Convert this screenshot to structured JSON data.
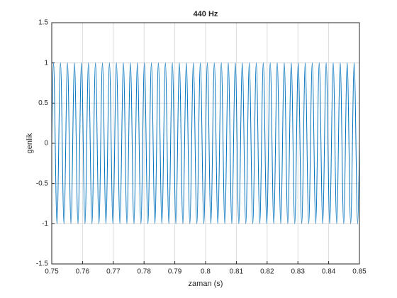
{
  "chart_data": {
    "type": "line",
    "title": "440 Hz",
    "xlabel": "zaman (s)",
    "ylabel": "genlik",
    "color": "#0072bd",
    "grid": true,
    "xlim": [
      0.75,
      0.85
    ],
    "ylim": [
      -1.5,
      1.5
    ],
    "xticks": [
      0.75,
      0.76,
      0.77,
      0.78,
      0.79,
      0.8,
      0.81,
      0.82,
      0.83,
      0.84,
      0.85
    ],
    "yticks": [
      -1.5,
      -1,
      -0.5,
      0,
      0.5,
      1,
      1.5
    ],
    "x": [
      0.75,
      0.750568,
      0.751136,
      0.751705,
      0.752273,
      0.752841,
      0.753409,
      0.753977,
      0.754545,
      0.755114,
      0.755682,
      0.75625,
      0.756818,
      0.757386,
      0.757955,
      0.758523,
      0.759091,
      0.759659,
      0.760227,
      0.760795,
      0.761364,
      0.761932,
      0.7625,
      0.763068,
      0.763636,
      0.764205,
      0.764773,
      0.765341,
      0.765909,
      0.766477,
      0.767045,
      0.767614,
      0.768182,
      0.76875,
      0.769318,
      0.769886,
      0.770455,
      0.771023,
      0.771591,
      0.772159,
      0.772727,
      0.773295,
      0.773864,
      0.774432,
      0.775,
      0.775568,
      0.776136,
      0.776705,
      0.777273,
      0.777841,
      0.778409,
      0.778977,
      0.779545,
      0.780114,
      0.780682,
      0.78125,
      0.781818,
      0.782386,
      0.782955,
      0.783523,
      0.784091,
      0.784659,
      0.785227,
      0.785795,
      0.786364,
      0.786932,
      0.7875,
      0.788068,
      0.788636,
      0.789205,
      0.789773,
      0.790341,
      0.790909,
      0.791477,
      0.792045,
      0.792614,
      0.793182,
      0.79375,
      0.794318,
      0.794886,
      0.795455,
      0.796023,
      0.796591,
      0.797159,
      0.797727,
      0.798295,
      0.798864,
      0.799432,
      0.8,
      0.800568,
      0.801136,
      0.801705,
      0.802273,
      0.802841,
      0.803409,
      0.803977,
      0.804545,
      0.805114,
      0.805682,
      0.80625,
      0.806818,
      0.807386,
      0.807955,
      0.808523,
      0.809091,
      0.809659,
      0.810227,
      0.810795,
      0.811364,
      0.811932,
      0.8125,
      0.813068,
      0.813636,
      0.814205,
      0.814773,
      0.815341,
      0.815909,
      0.816477,
      0.817045,
      0.817614,
      0.818182,
      0.81875,
      0.819318,
      0.819886,
      0.820455,
      0.821023,
      0.821591,
      0.822159,
      0.822727,
      0.823295,
      0.823864,
      0.824432,
      0.825,
      0.825568,
      0.826136,
      0.826705,
      0.827273,
      0.827841,
      0.828409,
      0.828977,
      0.829545,
      0.830114,
      0.830682,
      0.83125,
      0.831818,
      0.832386,
      0.832955,
      0.833523,
      0.834091,
      0.834659,
      0.835227,
      0.835795,
      0.836364,
      0.836932,
      0.8375,
      0.838068,
      0.838636,
      0.839205,
      0.839773,
      0.840341,
      0.840909,
      0.841477,
      0.842045,
      0.842614,
      0.843182,
      0.84375,
      0.844318,
      0.844886,
      0.845455,
      0.846023,
      0.846591,
      0.847159,
      0.847727,
      0.848295,
      0.848864,
      0.849432,
      0.85
    ],
    "values": [
      0,
      1,
      0,
      -1,
      0,
      1,
      0,
      -1,
      0,
      1,
      0,
      -1,
      0,
      1,
      0,
      -1,
      0,
      1,
      0,
      -1,
      0,
      1,
      0,
      -1,
      0,
      1,
      0,
      -1,
      0,
      1,
      0,
      -1,
      0,
      1,
      0,
      -1,
      0,
      1,
      0,
      -1,
      0,
      1,
      0,
      -1,
      0,
      1,
      0,
      -1,
      0,
      1,
      0,
      -1,
      0,
      1,
      0,
      -1,
      0,
      1,
      0,
      -1,
      0,
      1,
      0,
      -1,
      0,
      1,
      0,
      -1,
      0,
      1,
      0,
      -1,
      0,
      1,
      0,
      -1,
      0,
      1,
      0,
      -1,
      0,
      1,
      0,
      -1,
      0,
      1,
      0,
      -1,
      0,
      1,
      0,
      -1,
      0,
      1,
      0,
      -1,
      0,
      1,
      0,
      -1,
      0,
      1,
      0,
      -1,
      0,
      1,
      0,
      -1,
      0,
      1,
      0,
      -1,
      0,
      1,
      0,
      -1,
      0,
      1,
      0,
      -1,
      0,
      1,
      0,
      -1,
      0,
      1,
      0,
      -1,
      0,
      1,
      0,
      -1,
      0,
      1,
      0,
      -1,
      0,
      1,
      0,
      -1,
      0,
      1,
      0,
      -1,
      0,
      1,
      0,
      -1,
      0,
      1,
      0,
      -1,
      0,
      1,
      0,
      -1,
      0,
      1,
      0,
      -1,
      0,
      1,
      0,
      -1,
      0,
      1,
      0,
      -1,
      0,
      1,
      0,
      -1,
      0,
      1,
      0,
      -1,
      0
    ]
  }
}
